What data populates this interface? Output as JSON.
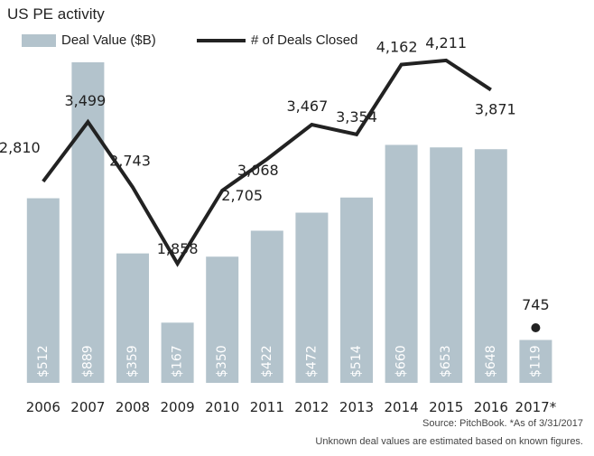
{
  "chart_data": {
    "type": "bar",
    "title": "US PE activity",
    "categories": [
      "2006",
      "2007",
      "2008",
      "2009",
      "2010",
      "2011",
      "2012",
      "2013",
      "2014",
      "2015",
      "2016",
      "2017*"
    ],
    "series": [
      {
        "name": "Deal Value ($B)",
        "type": "bar",
        "values": [
          512,
          889,
          359,
          167,
          350,
          422,
          472,
          514,
          660,
          653,
          648,
          119
        ],
        "labels": [
          "$512",
          "$889",
          "$359",
          "$167",
          "$350",
          "$422",
          "$472",
          "$514",
          "$660",
          "$653",
          "$648",
          "$119"
        ],
        "color": "#b3c3cc",
        "ylim": [
          0,
          1000
        ]
      },
      {
        "name": "# of Deals Closed",
        "type": "line",
        "values": [
          2810,
          3499,
          2743,
          1858,
          2705,
          3068,
          3467,
          3354,
          4162,
          4211,
          3871,
          745
        ],
        "labels": [
          "2,810",
          "3,499",
          "2,743",
          "1,858",
          "2,705",
          "3,068",
          "3,467",
          "3,354",
          "4,162",
          "4,211",
          "3,871",
          "745"
        ],
        "color": "#222222",
        "ylim": [
          0,
          4800
        ],
        "last_point_marker_only": true
      }
    ],
    "legend": "top-left",
    "grid": false
  },
  "source": "Source: PitchBook. *As of 3/31/2017",
  "note": "Unknown deal values are estimated based on known figures."
}
